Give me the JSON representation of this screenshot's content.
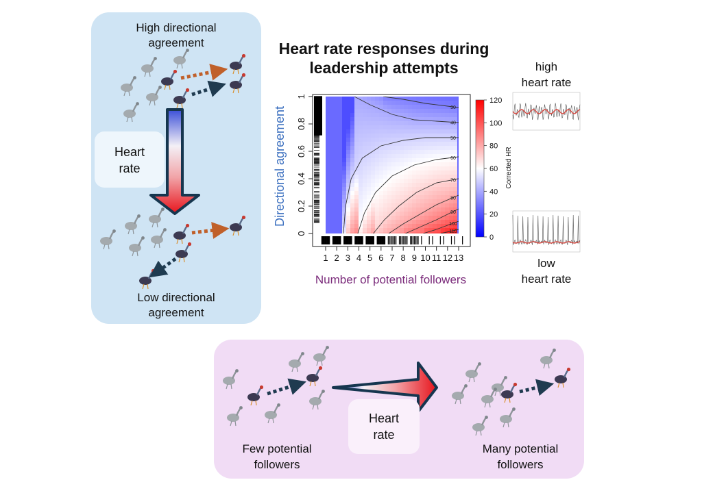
{
  "title": {
    "line1": "Heart rate responses during",
    "line2": "leadership attempts"
  },
  "left_panel": {
    "top_label": {
      "line1": "High directional",
      "line2": "agreement"
    },
    "bottom_label": {
      "line1": "Low directional",
      "line2": "agreement"
    },
    "arrow_box": {
      "line1": "Heart",
      "line2": "rate"
    }
  },
  "bottom_panel": {
    "left_label": {
      "line1": "Few potential",
      "line2": "followers"
    },
    "right_label": {
      "line1": "Many potential",
      "line2": "followers"
    },
    "arrow_box": {
      "line1": "Heart",
      "line2": "rate"
    }
  },
  "right_labels": {
    "high": {
      "line1": "high",
      "line2": "heart rate"
    },
    "low": {
      "line1": "low",
      "line2": "heart rate"
    }
  },
  "colors": {
    "left_panel_bg": "#cfe4f4",
    "bottom_panel_bg": "#f1dcf5",
    "arrow_outline": "#16364f",
    "arrow_dark": "#1f3b50",
    "arrow_orange": "#c0602a",
    "ylabel": "#3b6fbf",
    "xlabel": "#7a2a7a",
    "cmap_low": "#0000ff",
    "cmap_mid": "#ffffff",
    "cmap_high": "#ff0000"
  },
  "chart_data": {
    "type": "heatmap",
    "xlabel": "Number of potential followers",
    "ylabel": "Directional agreement",
    "x_ticks": [
      "1",
      "2",
      "3",
      "4",
      "5",
      "6",
      "7",
      "8",
      "9",
      "10",
      "11",
      "12",
      "13"
    ],
    "y_ticks": [
      "0",
      "0.2",
      "0.4",
      "0.6",
      "0.8",
      "1"
    ],
    "xlim": [
      1,
      13
    ],
    "ylim": [
      0,
      1
    ],
    "colorbar": {
      "label": "Corrected HR",
      "ticks": [
        "0",
        "20",
        "40",
        "60",
        "80",
        "100",
        "120"
      ],
      "range": [
        0,
        120
      ]
    },
    "contours": [
      {
        "level": 30,
        "label": "30",
        "points": [
          [
            6.2,
            1.0
          ],
          [
            8,
            0.98
          ],
          [
            10,
            0.95
          ],
          [
            12,
            0.93
          ],
          [
            13,
            0.92
          ]
        ]
      },
      {
        "level": 40,
        "label": "40",
        "points": [
          [
            3.6,
            1.0
          ],
          [
            5,
            0.94
          ],
          [
            7,
            0.87
          ],
          [
            9,
            0.83
          ],
          [
            11,
            0.82
          ],
          [
            13,
            0.81
          ]
        ]
      },
      {
        "level": 50,
        "label": "50",
        "points": [
          [
            2.6,
            0.0
          ],
          [
            2.8,
            0.2
          ],
          [
            3.3,
            0.4
          ],
          [
            4.3,
            0.55
          ],
          [
            6,
            0.64
          ],
          [
            8,
            0.68
          ],
          [
            10,
            0.7
          ],
          [
            13,
            0.7
          ]
        ]
      },
      {
        "level": 60,
        "label": "60",
        "points": [
          [
            3.9,
            0.0
          ],
          [
            4.5,
            0.15
          ],
          [
            5.5,
            0.3
          ],
          [
            7,
            0.42
          ],
          [
            9,
            0.5
          ],
          [
            11,
            0.54
          ],
          [
            13,
            0.56
          ]
        ]
      },
      {
        "level": 70,
        "label": "70",
        "points": [
          [
            5.3,
            0.0
          ],
          [
            6.3,
            0.1
          ],
          [
            7.6,
            0.2
          ],
          [
            9.2,
            0.3
          ],
          [
            11,
            0.37
          ],
          [
            13,
            0.4
          ]
        ]
      },
      {
        "level": 80,
        "label": "80",
        "points": [
          [
            6.7,
            0.0
          ],
          [
            8,
            0.07
          ],
          [
            9.5,
            0.14
          ],
          [
            11,
            0.21
          ],
          [
            13,
            0.28
          ]
        ]
      },
      {
        "level": 90,
        "label": "90",
        "points": [
          [
            8.2,
            0.0
          ],
          [
            9.6,
            0.05
          ],
          [
            11,
            0.1
          ],
          [
            12,
            0.14
          ],
          [
            13,
            0.18
          ]
        ]
      },
      {
        "level": 100,
        "label": "100",
        "points": [
          [
            9.8,
            0.0
          ],
          [
            11,
            0.03
          ],
          [
            12,
            0.06
          ],
          [
            13,
            0.09
          ]
        ]
      },
      {
        "level": 110,
        "label": "110",
        "points": [
          [
            11.4,
            0.0
          ],
          [
            12.2,
            0.015
          ],
          [
            13,
            0.03
          ]
        ]
      }
    ]
  }
}
